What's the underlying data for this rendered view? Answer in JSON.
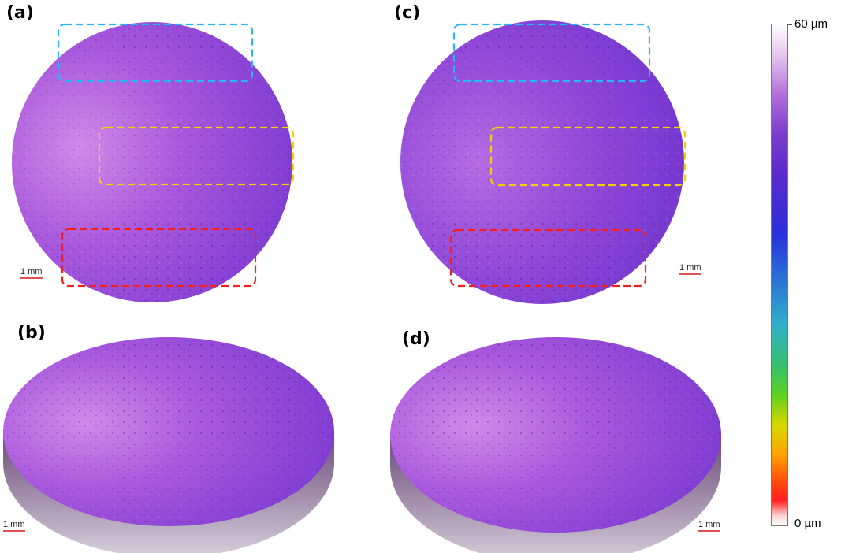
{
  "panels": {
    "a": "(a)",
    "b": "(b)",
    "c": "(c)",
    "d": "(d)"
  },
  "scale_bar": "1 mm",
  "colorbar": {
    "max_label": "60 µm",
    "min_label": "0 µm"
  },
  "colors": {
    "surface": "#9a48dc",
    "surface_light": "#c884e8",
    "box_top": "#29b6f6",
    "box_middle": "#f5d000",
    "box_bottom": "#f02020",
    "scale_bar": "#e05050"
  }
}
